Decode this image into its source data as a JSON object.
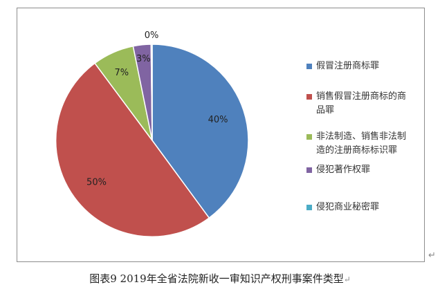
{
  "chart_data": {
    "type": "pie",
    "categories": [
      "假冒注册商标罪",
      "销售假冒注册商标的商品罪",
      "非法制造、销售非法制造的注册商标标识罪",
      "侵犯著作权罪",
      "侵犯商业秘密罪"
    ],
    "values": [
      40,
      50,
      7,
      3,
      0
    ],
    "data_labels": [
      "40%",
      "50%",
      "7%",
      "3%",
      "0%"
    ],
    "colors": [
      "#4f81bd",
      "#c0504d",
      "#9bbb59",
      "#8064a2",
      "#4bacc6"
    ],
    "legend_position": "right",
    "title": ""
  },
  "legend": {
    "items": [
      {
        "lines": [
          "假冒注册商标罪"
        ]
      },
      {
        "lines": [
          "销售假冒注册商标的商",
          "品罪"
        ]
      },
      {
        "lines": [
          "非法制造、销售非法制",
          "造的注册商标标识罪"
        ]
      },
      {
        "lines": [
          "侵犯著作权罪"
        ]
      },
      {
        "lines": [
          "侵犯商业秘密罪"
        ]
      }
    ]
  },
  "caption": {
    "text": "图表9   2019年全省法院新收一审知识产权刑事案件类型",
    "trailing_mark": "↵"
  },
  "frame_mark": "↵"
}
